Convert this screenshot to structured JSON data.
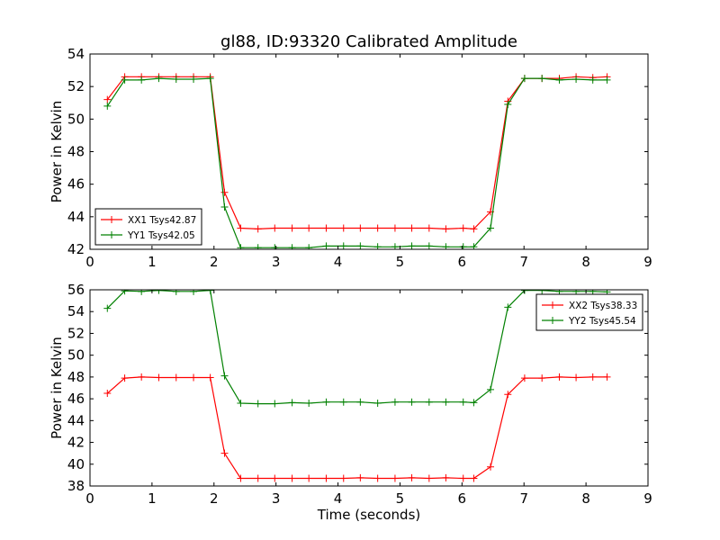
{
  "title": "gl88, ID:93320 Calibrated Amplitude",
  "chart_data": [
    {
      "type": "line",
      "title": "gl88, ID:93320 Calibrated Amplitude",
      "xlabel": "",
      "ylabel": "Power in Kelvin",
      "xlim": [
        0,
        9
      ],
      "ylim": [
        42,
        54
      ],
      "xticks": [
        "0",
        "1",
        "2",
        "3",
        "4",
        "5",
        "6",
        "7",
        "8",
        "9"
      ],
      "yticks": [
        "42",
        "44",
        "46",
        "48",
        "50",
        "52",
        "54"
      ],
      "grid": false,
      "legend_position": "lower-left",
      "x": [
        0.28,
        0.56,
        0.83,
        1.11,
        1.39,
        1.67,
        1.94,
        2.17,
        2.43,
        2.71,
        2.98,
        3.26,
        3.53,
        3.81,
        4.09,
        4.36,
        4.64,
        4.92,
        5.19,
        5.47,
        5.74,
        6.02,
        6.19,
        6.46,
        6.74,
        7.01,
        7.29,
        7.57,
        7.84,
        8.11,
        8.34
      ],
      "series": [
        {
          "name": "XX1 Tsys42.87",
          "color": "#ff0000",
          "values": [
            51.2,
            52.6,
            52.6,
            52.6,
            52.6,
            52.6,
            52.6,
            45.5,
            43.3,
            43.25,
            43.3,
            43.3,
            43.3,
            43.3,
            43.3,
            43.3,
            43.3,
            43.3,
            43.3,
            43.3,
            43.25,
            43.3,
            43.25,
            44.3,
            51.1,
            52.5,
            52.5,
            52.5,
            52.6,
            52.55,
            52.6
          ]
        },
        {
          "name": "YY1 Tsys42.05",
          "color": "#008000",
          "values": [
            50.8,
            52.4,
            52.4,
            52.5,
            52.45,
            52.45,
            52.5,
            44.6,
            42.1,
            42.1,
            42.1,
            42.1,
            42.1,
            42.2,
            42.2,
            42.2,
            42.15,
            42.15,
            42.2,
            42.2,
            42.15,
            42.15,
            42.15,
            43.3,
            50.9,
            52.5,
            52.5,
            52.4,
            52.45,
            52.4,
            52.4
          ]
        }
      ]
    },
    {
      "type": "line",
      "title": "",
      "xlabel": "Time (seconds)",
      "ylabel": "Power in Kelvin",
      "xlim": [
        0,
        9
      ],
      "ylim": [
        38,
        56
      ],
      "xticks": [
        "0",
        "1",
        "2",
        "3",
        "4",
        "5",
        "6",
        "7",
        "8",
        "9"
      ],
      "yticks": [
        "38",
        "40",
        "42",
        "44",
        "46",
        "48",
        "50",
        "52",
        "54",
        "56"
      ],
      "grid": false,
      "legend_position": "upper-right",
      "x": [
        0.28,
        0.56,
        0.83,
        1.11,
        1.39,
        1.67,
        1.94,
        2.17,
        2.43,
        2.71,
        2.98,
        3.26,
        3.53,
        3.81,
        4.09,
        4.36,
        4.64,
        4.92,
        5.19,
        5.47,
        5.74,
        6.02,
        6.19,
        6.46,
        6.74,
        7.01,
        7.29,
        7.57,
        7.84,
        8.11,
        8.34
      ],
      "series": [
        {
          "name": "XX2 Tsys38.33",
          "color": "#ff0000",
          "values": [
            46.5,
            47.9,
            48.0,
            47.95,
            47.95,
            47.95,
            47.95,
            41.0,
            38.7,
            38.7,
            38.7,
            38.7,
            38.7,
            38.7,
            38.7,
            38.75,
            38.7,
            38.7,
            38.75,
            38.7,
            38.75,
            38.7,
            38.7,
            39.75,
            46.4,
            47.9,
            47.9,
            48.0,
            47.95,
            48.0,
            48.0
          ]
        },
        {
          "name": "YY2 Tsys45.54",
          "color": "#008000",
          "values": [
            54.3,
            55.9,
            55.85,
            55.95,
            55.85,
            55.85,
            55.95,
            48.1,
            45.6,
            45.55,
            45.55,
            45.65,
            45.6,
            45.7,
            45.7,
            45.7,
            45.6,
            45.7,
            45.7,
            45.7,
            45.7,
            45.7,
            45.65,
            46.85,
            54.4,
            55.95,
            55.95,
            55.85,
            55.85,
            55.85,
            55.8
          ]
        }
      ]
    }
  ]
}
